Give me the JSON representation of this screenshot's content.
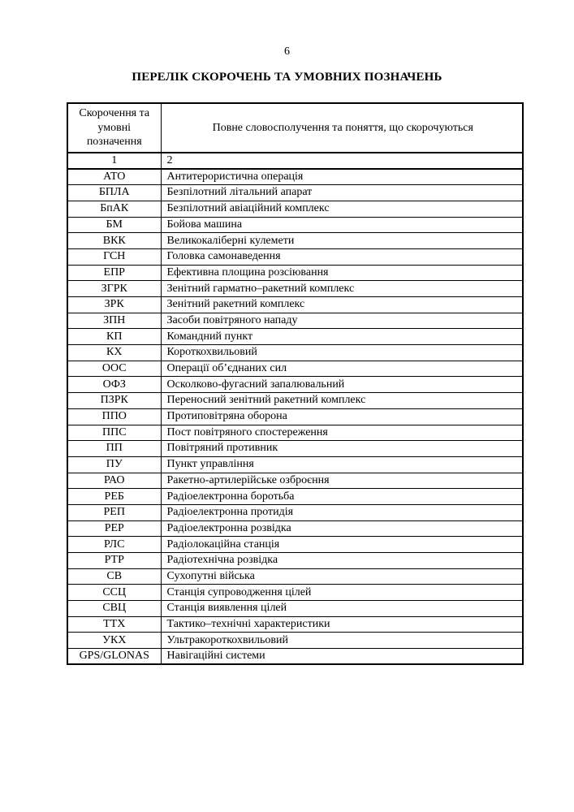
{
  "page": {
    "number": "6",
    "title": "ПЕРЕЛІК СКОРОЧЕНЬ ТА УМОВНИХ ПОЗНАЧЕНЬ"
  },
  "table": {
    "header": {
      "col1": "Скорочення та умовні позначення",
      "col2": "Повне словосполучення та поняття, що скорочуються"
    },
    "numbering_row": {
      "col1": "1",
      "col2": "2"
    },
    "rows": [
      {
        "abbr": "АТО",
        "full": "Антитерористична операція"
      },
      {
        "abbr": "БПЛА",
        "full": "Безпілотний літальний апарат"
      },
      {
        "abbr": "БпАК",
        "full": "Безпілотний авіаційний комплекс"
      },
      {
        "abbr": "БМ",
        "full": "Бойова машина"
      },
      {
        "abbr": "ВКК",
        "full": "Великокаліберні кулемети"
      },
      {
        "abbr": "ГСН",
        "full": "Головка самонаведення"
      },
      {
        "abbr": "ЕПР",
        "full": "Ефективна площина розсіювання"
      },
      {
        "abbr": "ЗГРК",
        "full": "Зенітний гарматно–ракетний комплекс"
      },
      {
        "abbr": "ЗРК",
        "full": "Зенітний ракетний комплекс"
      },
      {
        "abbr": "ЗПН",
        "full": "Засоби повітряного нападу"
      },
      {
        "abbr": "КП",
        "full": "Командний пункт"
      },
      {
        "abbr": "КХ",
        "full": "Короткохвильовий"
      },
      {
        "abbr": "ООС",
        "full": "Операції об’єднаних сил"
      },
      {
        "abbr": "ОФЗ",
        "full": "Осколково-фугасний запалювальний"
      },
      {
        "abbr": "ПЗРК",
        "full": "Переносний зенітний ракетний комплекс"
      },
      {
        "abbr": "ППО",
        "full": "Протиповітряна оборона"
      },
      {
        "abbr": "ППС",
        "full": "Пост повітряного спостереження"
      },
      {
        "abbr": "ПП",
        "full": "Повітряний противник"
      },
      {
        "abbr": "ПУ",
        "full": "Пункт управління"
      },
      {
        "abbr": "РАО",
        "full": "Ракетно-артилерійське озброєння"
      },
      {
        "abbr": "РЕБ",
        "full": "Радіоелектронна боротьба"
      },
      {
        "abbr": "РЕП",
        "full": "Радіоелектронна протидія"
      },
      {
        "abbr": "РЕР",
        "full": "Радіоелектронна розвідка"
      },
      {
        "abbr": "РЛС",
        "full": "Радіолокаційна станція"
      },
      {
        "abbr": "РТР",
        "full": "Радіотехнічна розвідка"
      },
      {
        "abbr": "СВ",
        "full": "Сухопутні війська"
      },
      {
        "abbr": "ССЦ",
        "full": "Станція супроводження цілей"
      },
      {
        "abbr": "СВЦ",
        "full": "Станція виявлення цілей"
      },
      {
        "abbr": "ТТХ",
        "full": "Тактико–технічні характеристики"
      },
      {
        "abbr": "УКХ",
        "full": "Ультракороткохвильовий"
      },
      {
        "abbr": "GPS/GLONAS",
        "full": "Навігаційні системи"
      }
    ]
  }
}
